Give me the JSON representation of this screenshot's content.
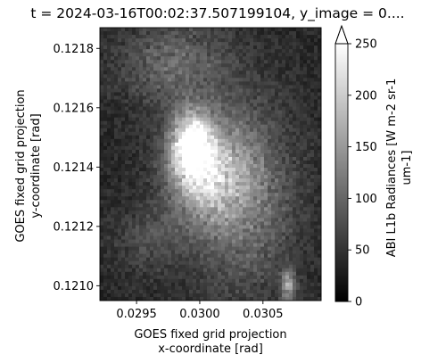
{
  "chart_data": {
    "type": "heatmap",
    "title": "t = 2024-03-16T00:02:37.507199104, y_image = 0....",
    "xlabel": [
      "GOES fixed grid projection",
      "x-coordinate [rad]"
    ],
    "ylabel": [
      "GOES fixed grid projection",
      "y-coordinate [rad]"
    ],
    "xlim": [
      0.02921,
      0.03096
    ],
    "ylim": [
      0.12095,
      0.12187
    ],
    "xticks": [
      0.0295,
      0.03,
      0.0305
    ],
    "xtick_labels": [
      "0.0295",
      "0.0300",
      "0.0305"
    ],
    "yticks": [
      0.121,
      0.1212,
      0.1214,
      0.1216,
      0.1218
    ],
    "ytick_labels": [
      "0.1210",
      "0.1212",
      "0.1214",
      "0.1216",
      "0.1218"
    ],
    "grid": false,
    "colormap": "gray",
    "colorbar": {
      "label": [
        "ABI L1b Radiances [W m-2 sr-1",
        "um-1]"
      ],
      "range": [
        0,
        250
      ],
      "extend": "max",
      "ticks": [
        0,
        50,
        100,
        150,
        200,
        250
      ],
      "tick_labels": [
        "0",
        "50",
        "100",
        "150",
        "200",
        "250"
      ]
    },
    "field": {
      "background": 45,
      "features": [
        {
          "x": 0.02994,
          "y": 0.12147,
          "peak": 240,
          "sx": 0.00011,
          "sy": 7.5e-05,
          "note": "bright cloud core"
        },
        {
          "x": 0.03005,
          "y": 0.12138,
          "peak": 150,
          "sx": 0.00022,
          "sy": 0.00012,
          "note": "surrounding cloud"
        },
        {
          "x": 0.03035,
          "y": 0.1213,
          "peak": 90,
          "sx": 0.00028,
          "sy": 0.00022,
          "note": "streaks right"
        },
        {
          "x": 0.0298,
          "y": 0.12175,
          "peak": 70,
          "sx": 0.0003,
          "sy": 0.0001,
          "note": "upper field"
        },
        {
          "x": 0.0307,
          "y": 0.121,
          "peak": 120,
          "sx": 4e-05,
          "sy": 4e-05,
          "note": "small bright spot"
        },
        {
          "x": 0.0296,
          "y": 0.12115,
          "peak": 40,
          "sx": 0.0002,
          "sy": 8e-05,
          "note": "faint lower-left"
        }
      ]
    }
  }
}
